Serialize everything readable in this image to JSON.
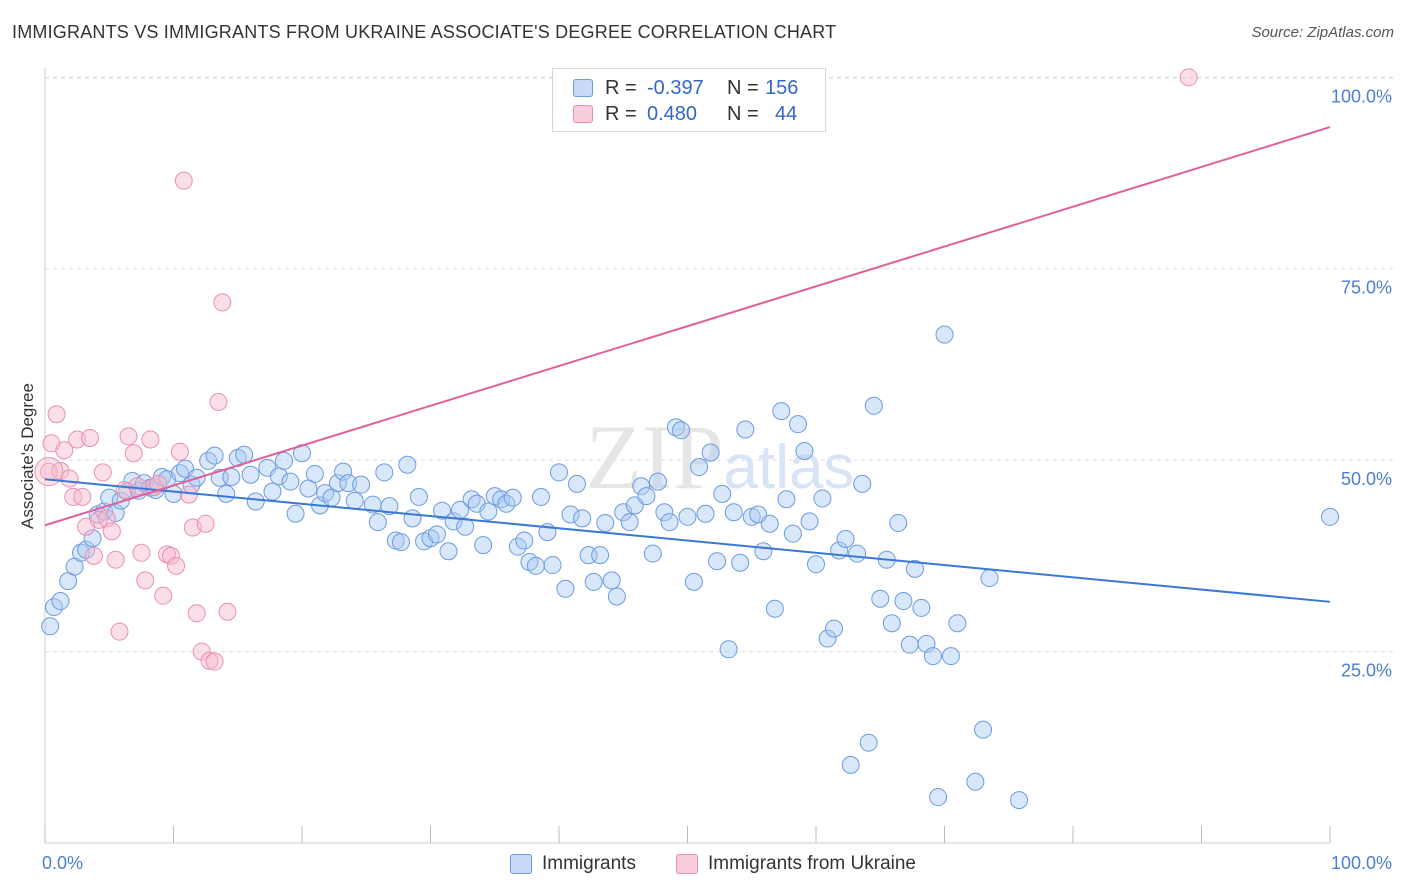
{
  "title": "IMMIGRANTS VS IMMIGRANTS FROM UKRAINE ASSOCIATE'S DEGREE CORRELATION CHART",
  "source": "Source: ZipAtlas.com",
  "watermark": "ZIPatlas",
  "colors": {
    "blue": "#3a78d6",
    "blue_fill": "#a9c9f2",
    "pink": "#e0609a",
    "pink_fill": "#f6b8cd",
    "axis_text": "#4a7fd4",
    "grid": "#dddddd"
  },
  "legend": {
    "rows": [
      {
        "r_label": "R =",
        "r_value": "-0.397",
        "n_label": "N =",
        "n_value": "156"
      },
      {
        "r_label": "R =",
        "r_value": "0.480",
        "n_label": "N =",
        "n_value": "44"
      }
    ]
  },
  "bottom_legend": {
    "items": [
      {
        "label": "Immigrants"
      },
      {
        "label": "Immigrants from Ukraine"
      }
    ]
  },
  "chart_data": {
    "type": "scatter",
    "title": "IMMIGRANTS VS IMMIGRANTS FROM UKRAINE ASSOCIATE'S DEGREE CORRELATION CHART",
    "xlabel": "",
    "ylabel": "Associate's Degree",
    "xlim": [
      0,
      100
    ],
    "ylim": [
      0,
      102
    ],
    "x_tick_labels": [
      "0.0%",
      "100.0%"
    ],
    "y_tick_labels": [
      "25.0%",
      "50.0%",
      "75.0%",
      "100.0%"
    ],
    "y_ticks": [
      25,
      50,
      75,
      100
    ],
    "grid": true,
    "legend_position": "top-center",
    "series": [
      {
        "name": "Immigrants",
        "color": "#3a78d6",
        "trend": {
          "x": [
            0,
            100
          ],
          "y": [
            47.5,
            31.5
          ]
        },
        "points": [
          [
            0.4,
            28.3
          ],
          [
            0.7,
            30.8
          ],
          [
            1.2,
            31.6
          ],
          [
            1.8,
            34.2
          ],
          [
            2.3,
            36.1
          ],
          [
            2.8,
            37.9
          ],
          [
            3.2,
            38.3
          ],
          [
            3.7,
            39.8
          ],
          [
            4.1,
            42.9
          ],
          [
            4.6,
            43.3
          ],
          [
            5.0,
            45.1
          ],
          [
            5.5,
            43.1
          ],
          [
            5.9,
            44.7
          ],
          [
            6.4,
            45.9
          ],
          [
            6.8,
            47.3
          ],
          [
            7.3,
            46.0
          ],
          [
            7.7,
            47.0
          ],
          [
            8.2,
            46.4
          ],
          [
            8.6,
            46.1
          ],
          [
            9.1,
            47.8
          ],
          [
            9.5,
            47.5
          ],
          [
            10.0,
            45.6
          ],
          [
            10.5,
            48.3
          ],
          [
            10.9,
            48.9
          ],
          [
            11.4,
            46.8
          ],
          [
            11.8,
            47.7
          ],
          [
            12.7,
            49.9
          ],
          [
            13.2,
            50.6
          ],
          [
            13.6,
            47.7
          ],
          [
            14.1,
            45.6
          ],
          [
            14.5,
            47.8
          ],
          [
            15.0,
            50.3
          ],
          [
            15.5,
            50.7
          ],
          [
            16.0,
            48.1
          ],
          [
            16.4,
            44.6
          ],
          [
            17.3,
            49.0
          ],
          [
            17.7,
            45.9
          ],
          [
            18.2,
            47.9
          ],
          [
            18.6,
            49.9
          ],
          [
            19.1,
            47.2
          ],
          [
            19.5,
            43.0
          ],
          [
            20.0,
            50.9
          ],
          [
            20.5,
            46.3
          ],
          [
            21.0,
            48.2
          ],
          [
            21.4,
            44.1
          ],
          [
            21.8,
            45.7
          ],
          [
            22.3,
            45.1
          ],
          [
            22.8,
            47.0
          ],
          [
            23.2,
            48.5
          ],
          [
            23.6,
            47.0
          ],
          [
            24.1,
            44.7
          ],
          [
            24.6,
            46.8
          ],
          [
            25.5,
            44.2
          ],
          [
            25.9,
            41.9
          ],
          [
            26.4,
            48.4
          ],
          [
            26.8,
            44.0
          ],
          [
            27.3,
            39.5
          ],
          [
            27.7,
            39.3
          ],
          [
            28.2,
            49.4
          ],
          [
            28.6,
            42.4
          ],
          [
            29.1,
            45.2
          ],
          [
            29.5,
            39.4
          ],
          [
            30.0,
            39.8
          ],
          [
            30.5,
            40.3
          ],
          [
            30.9,
            43.4
          ],
          [
            31.4,
            38.1
          ],
          [
            31.8,
            42.0
          ],
          [
            32.3,
            43.5
          ],
          [
            32.7,
            41.3
          ],
          [
            33.2,
            44.9
          ],
          [
            33.6,
            44.3
          ],
          [
            34.1,
            38.9
          ],
          [
            34.5,
            43.3
          ],
          [
            35.0,
            45.3
          ],
          [
            35.5,
            44.9
          ],
          [
            35.9,
            44.3
          ],
          [
            36.4,
            45.1
          ],
          [
            36.8,
            38.7
          ],
          [
            37.3,
            39.5
          ],
          [
            37.7,
            36.7
          ],
          [
            38.2,
            36.2
          ],
          [
            38.6,
            45.2
          ],
          [
            39.1,
            40.6
          ],
          [
            39.5,
            36.3
          ],
          [
            40.0,
            48.4
          ],
          [
            40.5,
            33.2
          ],
          [
            40.9,
            42.9
          ],
          [
            41.4,
            46.9
          ],
          [
            41.8,
            42.4
          ],
          [
            42.3,
            37.6
          ],
          [
            42.7,
            34.1
          ],
          [
            43.2,
            37.6
          ],
          [
            43.6,
            41.8
          ],
          [
            44.1,
            34.3
          ],
          [
            44.5,
            32.2
          ],
          [
            45.0,
            43.2
          ],
          [
            45.5,
            41.9
          ],
          [
            45.9,
            44.1
          ],
          [
            46.4,
            46.6
          ],
          [
            46.8,
            45.3
          ],
          [
            47.3,
            37.8
          ],
          [
            47.7,
            47.2
          ],
          [
            48.2,
            43.2
          ],
          [
            48.6,
            41.9
          ],
          [
            49.1,
            54.3
          ],
          [
            49.5,
            53.9
          ],
          [
            50.0,
            42.6
          ],
          [
            50.5,
            34.1
          ],
          [
            50.9,
            49.1
          ],
          [
            51.4,
            43.0
          ],
          [
            51.8,
            51.0
          ],
          [
            52.3,
            36.8
          ],
          [
            52.7,
            45.6
          ],
          [
            53.2,
            25.3
          ],
          [
            53.6,
            43.2
          ],
          [
            54.1,
            36.6
          ],
          [
            54.5,
            54.0
          ],
          [
            55.0,
            42.6
          ],
          [
            55.5,
            42.9
          ],
          [
            55.9,
            38.1
          ],
          [
            56.4,
            41.7
          ],
          [
            56.8,
            30.6
          ],
          [
            57.3,
            56.4
          ],
          [
            57.7,
            44.9
          ],
          [
            58.2,
            40.4
          ],
          [
            58.6,
            54.7
          ],
          [
            59.1,
            51.2
          ],
          [
            59.5,
            42.0
          ],
          [
            60.0,
            36.4
          ],
          [
            60.5,
            45.0
          ],
          [
            60.9,
            26.7
          ],
          [
            61.4,
            28.0
          ],
          [
            61.8,
            38.2
          ],
          [
            62.3,
            39.7
          ],
          [
            62.7,
            10.2
          ],
          [
            63.2,
            37.8
          ],
          [
            63.6,
            46.9
          ],
          [
            64.1,
            13.1
          ],
          [
            64.5,
            57.1
          ],
          [
            65.0,
            31.9
          ],
          [
            65.5,
            37.0
          ],
          [
            65.9,
            28.7
          ],
          [
            66.4,
            41.8
          ],
          [
            66.8,
            31.6
          ],
          [
            67.3,
            25.9
          ],
          [
            67.7,
            35.8
          ],
          [
            68.2,
            30.7
          ],
          [
            68.6,
            26.0
          ],
          [
            69.1,
            24.4
          ],
          [
            69.5,
            6.0
          ],
          [
            70.0,
            66.4
          ],
          [
            70.5,
            24.4
          ],
          [
            71.0,
            28.7
          ],
          [
            72.4,
            8.0
          ],
          [
            73.0,
            14.8
          ],
          [
            73.5,
            34.6
          ],
          [
            75.8,
            5.6
          ],
          [
            100.0,
            42.6
          ]
        ]
      },
      {
        "name": "Immigrants from Ukraine",
        "color": "#e0609a",
        "trend": {
          "x": [
            0,
            100
          ],
          "y": [
            41.5,
            93.5
          ]
        },
        "points": [
          [
            0.3,
            48.5
          ],
          [
            0.5,
            52.2
          ],
          [
            0.9,
            56.0
          ],
          [
            1.2,
            48.6
          ],
          [
            1.5,
            51.3
          ],
          [
            1.9,
            47.6
          ],
          [
            2.2,
            45.2
          ],
          [
            2.5,
            52.7
          ],
          [
            2.9,
            45.2
          ],
          [
            3.2,
            41.3
          ],
          [
            3.5,
            52.9
          ],
          [
            3.8,
            37.5
          ],
          [
            4.2,
            42.2
          ],
          [
            4.5,
            48.4
          ],
          [
            4.8,
            42.4
          ],
          [
            5.2,
            40.7
          ],
          [
            5.5,
            37.0
          ],
          [
            5.8,
            27.6
          ],
          [
            6.2,
            46.1
          ],
          [
            6.5,
            53.1
          ],
          [
            6.9,
            50.9
          ],
          [
            7.2,
            46.6
          ],
          [
            7.5,
            37.9
          ],
          [
            7.8,
            34.3
          ],
          [
            8.2,
            52.7
          ],
          [
            8.5,
            46.5
          ],
          [
            8.8,
            46.9
          ],
          [
            9.2,
            32.3
          ],
          [
            9.5,
            37.7
          ],
          [
            9.8,
            37.5
          ],
          [
            10.2,
            36.2
          ],
          [
            10.5,
            51.1
          ],
          [
            10.8,
            86.5
          ],
          [
            11.2,
            45.5
          ],
          [
            11.5,
            41.2
          ],
          [
            11.8,
            30.0
          ],
          [
            12.2,
            25.0
          ],
          [
            12.5,
            41.7
          ],
          [
            12.8,
            23.8
          ],
          [
            13.2,
            23.7
          ],
          [
            13.5,
            57.6
          ],
          [
            13.8,
            70.6
          ],
          [
            14.2,
            30.2
          ],
          [
            89.0,
            100.0
          ]
        ]
      }
    ]
  }
}
